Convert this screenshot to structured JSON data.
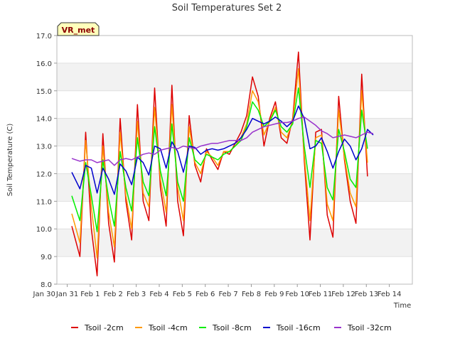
{
  "chart_data": {
    "type": "line",
    "title": "Soil Temperatures Set 2",
    "xlabel": "Time",
    "ylabel": "Soil Temperature (C)",
    "ylim": [
      8.0,
      17.0
    ],
    "xlim": [
      -0.45,
      15.0
    ],
    "yticks": [
      "8.0",
      "9.0",
      "10.0",
      "11.0",
      "12.0",
      "13.0",
      "14.0",
      "15.0",
      "16.0",
      "17.0"
    ],
    "xticks": [
      "Jan 30",
      "Jan 31",
      "Feb 1",
      "Feb 2",
      "Feb 3",
      "Feb 4",
      "Feb 5",
      "Feb 6",
      "Feb 7",
      "Feb 8",
      "Feb 9",
      "Feb 10",
      "Feb 11",
      "Feb 12",
      "Feb 13",
      "Feb 14"
    ],
    "grid": true,
    "legend_position": "bottom",
    "badge": "VR_met",
    "x_unit": "days from Jan 31 00:00",
    "series": [
      {
        "name": "Tsoil -2cm",
        "color": "#dd0000",
        "x": [
          0.2,
          0.55,
          0.8,
          1.05,
          1.3,
          1.55,
          1.8,
          2.05,
          2.3,
          2.55,
          2.8,
          3.05,
          3.3,
          3.55,
          3.8,
          4.05,
          4.3,
          4.55,
          4.8,
          5.05,
          5.3,
          5.55,
          5.8,
          6.05,
          6.3,
          6.55,
          6.8,
          7.05,
          7.3,
          7.55,
          7.8,
          8.05,
          8.3,
          8.55,
          8.8,
          9.05,
          9.3,
          9.55,
          9.8,
          10.05,
          10.3,
          10.55,
          10.8,
          11.05,
          11.3,
          11.55,
          11.8,
          12.05,
          12.3,
          12.55,
          12.8,
          13.05,
          13.3,
          13.55,
          13.8,
          14.05,
          14.3
        ],
        "y": [
          10.1,
          9.0,
          13.5,
          10.0,
          8.3,
          13.45,
          10.2,
          8.8,
          14.0,
          11.0,
          9.6,
          14.5,
          11.0,
          10.3,
          15.1,
          11.5,
          10.1,
          15.2,
          11.0,
          9.75,
          14.1,
          12.3,
          11.7,
          12.9,
          12.5,
          12.15,
          12.8,
          12.7,
          13.1,
          13.5,
          14.1,
          15.5,
          14.8,
          13.0,
          14.0,
          14.6,
          13.3,
          13.1,
          14.0,
          16.4,
          12.5,
          9.6,
          13.5,
          13.6,
          10.5,
          9.7,
          14.8,
          12.5,
          11.0,
          10.2,
          15.6,
          11.9,
          null,
          null,
          null,
          null,
          null
        ]
      },
      {
        "name": "Tsoil -4cm",
        "color": "#ff9900",
        "x": [
          0.2,
          0.55,
          0.8,
          1.05,
          1.3,
          1.55,
          1.8,
          2.05,
          2.3,
          2.55,
          2.8,
          3.05,
          3.3,
          3.55,
          3.8,
          4.05,
          4.3,
          4.55,
          4.8,
          5.05,
          5.3,
          5.55,
          5.8,
          6.05,
          6.3,
          6.55,
          6.8,
          7.05,
          7.3,
          7.55,
          7.8,
          8.05,
          8.3,
          8.55,
          8.8,
          9.05,
          9.3,
          9.55,
          9.8,
          10.05,
          10.3,
          10.55,
          10.8,
          11.05,
          11.3,
          11.55,
          11.8,
          12.05,
          12.3,
          12.55,
          12.8,
          13.05,
          13.3,
          13.55,
          13.8,
          14.05,
          14.3
        ],
        "y": [
          10.55,
          9.5,
          13.2,
          10.8,
          8.95,
          13.0,
          10.6,
          9.35,
          13.5,
          11.2,
          10.0,
          13.9,
          11.3,
          10.8,
          14.4,
          11.8,
          10.6,
          14.5,
          11.5,
          10.3,
          13.7,
          12.4,
          12.0,
          12.8,
          12.6,
          12.3,
          12.8,
          12.8,
          13.0,
          13.3,
          13.8,
          15.0,
          14.6,
          13.4,
          13.9,
          14.4,
          13.5,
          13.3,
          13.9,
          15.8,
          12.7,
          10.3,
          13.3,
          13.4,
          10.9,
          10.3,
          14.3,
          12.6,
          11.3,
          10.8,
          15.0,
          12.4,
          null,
          null,
          null,
          null,
          null
        ]
      },
      {
        "name": "Tsoil -8cm",
        "color": "#00ee00",
        "x": [
          0.2,
          0.55,
          0.8,
          1.05,
          1.3,
          1.55,
          1.8,
          2.05,
          2.3,
          2.55,
          2.8,
          3.05,
          3.3,
          3.55,
          3.8,
          4.05,
          4.3,
          4.55,
          4.8,
          5.05,
          5.3,
          5.55,
          5.8,
          6.05,
          6.3,
          6.55,
          6.8,
          7.05,
          7.3,
          7.55,
          7.8,
          8.05,
          8.3,
          8.55,
          8.8,
          9.05,
          9.3,
          9.55,
          9.8,
          10.05,
          10.3,
          10.55,
          10.8,
          11.05,
          11.3,
          11.55,
          11.8,
          12.05,
          12.3,
          12.55,
          12.8,
          13.05,
          13.3,
          13.55,
          13.8,
          14.05,
          14.3
        ],
        "y": [
          11.2,
          10.3,
          12.4,
          11.2,
          9.9,
          12.5,
          11.1,
          10.1,
          12.8,
          11.5,
          10.65,
          13.3,
          11.7,
          11.2,
          13.7,
          12.1,
          11.2,
          13.8,
          11.7,
          11.0,
          13.3,
          12.5,
          12.3,
          12.7,
          12.6,
          12.5,
          12.7,
          12.8,
          13.0,
          13.2,
          13.7,
          14.6,
          14.3,
          13.7,
          13.9,
          14.3,
          13.7,
          13.5,
          13.8,
          15.1,
          13.0,
          11.5,
          13.2,
          13.1,
          11.5,
          11.05,
          13.6,
          12.8,
          11.8,
          11.5,
          14.3,
          12.9,
          null,
          null,
          null,
          null,
          null
        ]
      },
      {
        "name": "Tsoil -16cm",
        "color": "#0000cc",
        "x": [
          0.2,
          0.55,
          0.8,
          1.05,
          1.3,
          1.55,
          1.8,
          2.05,
          2.3,
          2.55,
          2.8,
          3.05,
          3.3,
          3.55,
          3.8,
          4.05,
          4.3,
          4.55,
          4.8,
          5.05,
          5.3,
          5.55,
          5.8,
          6.05,
          6.3,
          6.55,
          6.8,
          7.05,
          7.3,
          7.55,
          7.8,
          8.05,
          8.3,
          8.55,
          8.8,
          9.05,
          9.3,
          9.55,
          9.8,
          10.05,
          10.3,
          10.55,
          10.8,
          11.05,
          11.3,
          11.55,
          11.8,
          12.05,
          12.3,
          12.55,
          12.8,
          13.05,
          13.3,
          13.55,
          13.8,
          14.05,
          14.3
        ],
        "y": [
          12.05,
          11.45,
          12.3,
          12.2,
          11.3,
          12.2,
          11.8,
          11.25,
          12.35,
          12.1,
          11.6,
          12.6,
          12.4,
          11.95,
          13.0,
          12.9,
          12.2,
          13.15,
          12.8,
          12.05,
          13.0,
          12.95,
          12.7,
          12.85,
          12.9,
          12.85,
          12.9,
          13.0,
          13.1,
          13.3,
          13.6,
          14.0,
          13.9,
          13.8,
          13.9,
          14.05,
          13.9,
          13.7,
          13.9,
          14.45,
          14.0,
          12.9,
          13.0,
          13.3,
          12.8,
          12.2,
          12.8,
          13.25,
          13.0,
          12.5,
          12.9,
          13.6,
          13.4,
          null,
          null,
          null,
          null
        ]
      },
      {
        "name": "Tsoil -32cm",
        "color": "#9933cc",
        "x": [
          0.2,
          0.55,
          0.8,
          1.05,
          1.3,
          1.55,
          1.8,
          2.05,
          2.3,
          2.55,
          2.8,
          3.05,
          3.3,
          3.55,
          3.8,
          4.05,
          4.3,
          4.55,
          4.8,
          5.05,
          5.3,
          5.55,
          5.8,
          6.05,
          6.3,
          6.55,
          6.8,
          7.05,
          7.3,
          7.55,
          7.8,
          8.05,
          8.3,
          8.55,
          8.8,
          9.05,
          9.3,
          9.55,
          9.8,
          10.05,
          10.3,
          10.55,
          10.8,
          11.05,
          11.3,
          11.55,
          11.8,
          12.05,
          12.3,
          12.55,
          12.8,
          13.05,
          13.3,
          13.55,
          13.8,
          14.05,
          14.3
        ],
        "y": [
          12.55,
          12.45,
          12.5,
          12.5,
          12.4,
          12.45,
          12.5,
          12.3,
          12.5,
          12.55,
          12.5,
          12.6,
          12.7,
          12.75,
          12.7,
          12.85,
          12.9,
          12.95,
          12.9,
          13.0,
          12.95,
          12.9,
          13.0,
          13.05,
          13.1,
          13.1,
          13.15,
          13.2,
          13.2,
          13.2,
          13.3,
          13.5,
          13.6,
          13.7,
          13.75,
          13.8,
          13.85,
          13.85,
          13.9,
          14.0,
          14.05,
          13.9,
          13.75,
          13.55,
          13.45,
          13.3,
          13.35,
          13.4,
          13.35,
          13.3,
          13.4,
          13.5,
          13.45,
          null,
          null,
          null,
          null
        ]
      }
    ]
  }
}
